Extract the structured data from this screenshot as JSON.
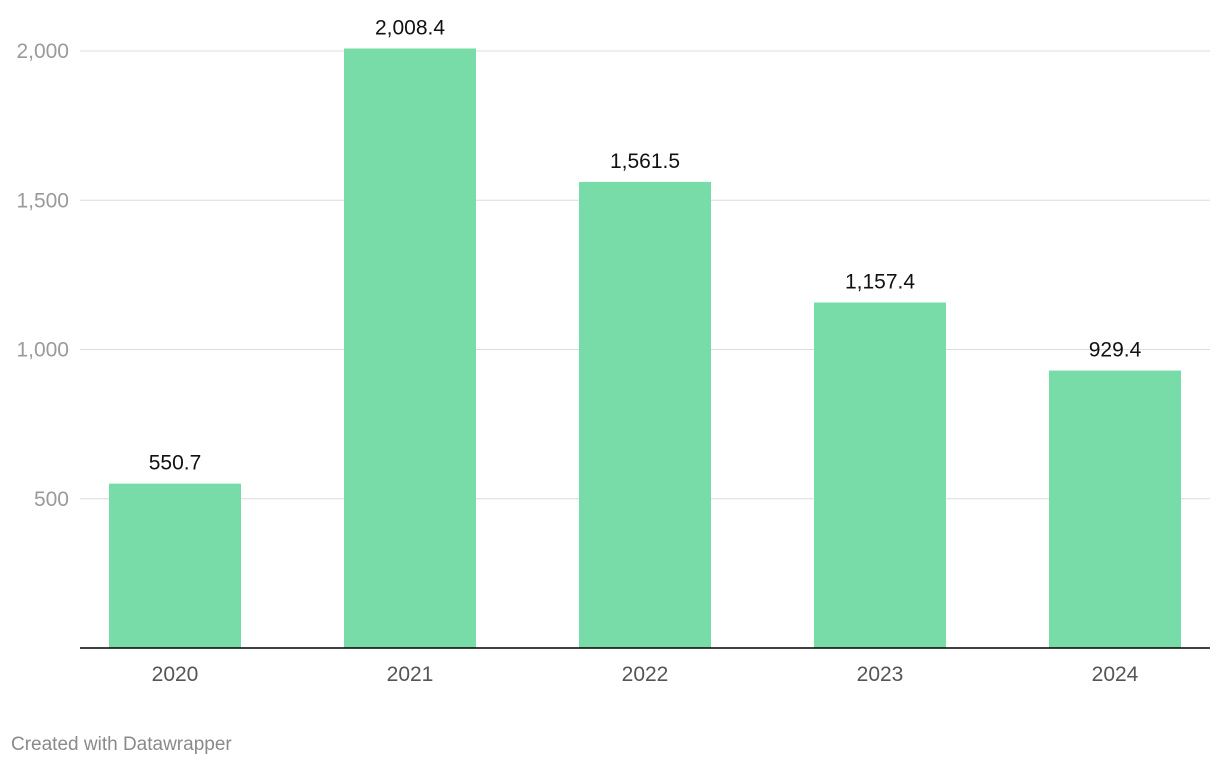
{
  "chart_data": {
    "type": "bar",
    "categories": [
      "2020",
      "2021",
      "2022",
      "2023",
      "2024"
    ],
    "values": [
      550.7,
      2008.4,
      1561.5,
      1157.4,
      929.4
    ],
    "value_labels": [
      "550.7",
      "2,008.4",
      "1,561.5",
      "1,157.4",
      "929.4"
    ],
    "yticks": [
      500,
      1000,
      1500,
      2000
    ],
    "ytick_labels": [
      "500",
      "1,000",
      "1,500",
      "2,000"
    ],
    "ylim": [
      0,
      2000
    ],
    "bar_color": "#77dca7",
    "grid": true
  },
  "footer": {
    "credit": "Created with Datawrapper"
  }
}
